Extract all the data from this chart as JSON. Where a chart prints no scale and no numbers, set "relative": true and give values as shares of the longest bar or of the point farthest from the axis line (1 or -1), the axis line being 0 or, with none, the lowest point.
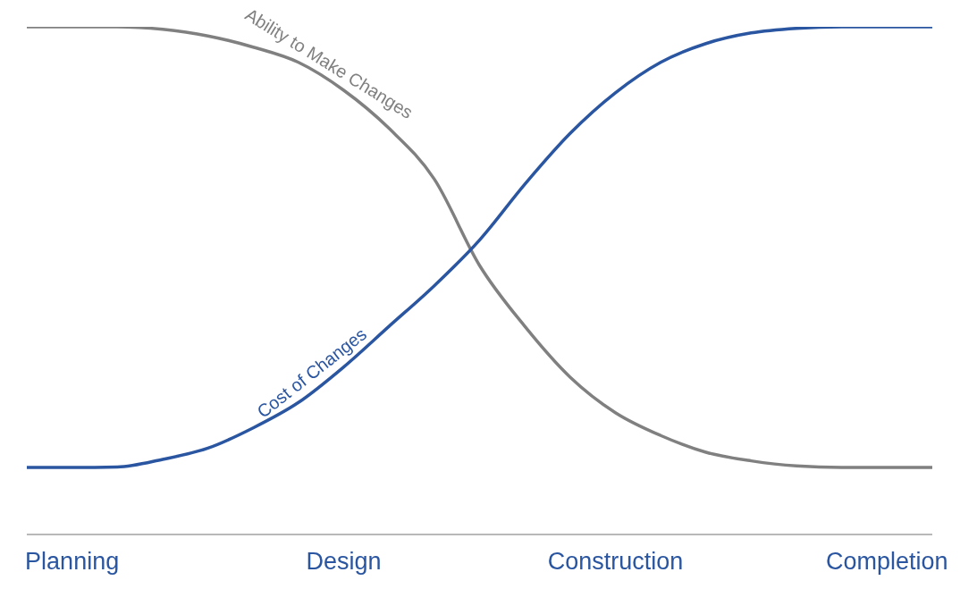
{
  "chart_data": {
    "type": "line",
    "relative": true,
    "categories": [
      null,
      "Planning",
      null,
      null,
      null,
      null,
      null,
      "Design",
      null,
      null,
      null,
      null,
      null,
      "Construction",
      null,
      null,
      null,
      null,
      null,
      "Completion",
      null
    ],
    "grid": false,
    "legend": false,
    "marker": "none",
    "line_style": "solid",
    "series": [
      {
        "name": "Ability to Make Changes",
        "color": "#808080",
        "values": [
          1,
          1,
          1,
          0.995,
          0.982,
          0.96,
          0.93,
          0.875,
          0.8,
          0.7,
          0.53,
          0.41,
          0.31,
          0.24,
          0.195,
          0.162,
          0.145,
          0.135,
          0.132,
          0.132,
          0.132
        ]
      },
      {
        "name": "Cost of Changes",
        "color": "#2a55a0",
        "values": [
          0.132,
          0.132,
          0.133,
          0.148,
          0.17,
          0.21,
          0.26,
          0.33,
          0.41,
          0.49,
          0.58,
          0.69,
          0.79,
          0.87,
          0.93,
          0.967,
          0.988,
          0.997,
          1,
          1,
          1
        ]
      }
    ]
  }
}
